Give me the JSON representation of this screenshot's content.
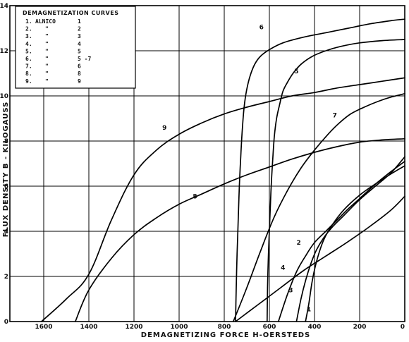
{
  "chart_data": {
    "type": "line",
    "title": "",
    "xlabel": "DEMAGNETIZING FORCE H-OERSTEDS",
    "ylabel": "FLUX DENSITY B - KILOGAUSS",
    "x_reversed": true,
    "xlim": [
      1750,
      0
    ],
    "ylim": [
      0,
      14
    ],
    "x_ticks": [
      1600,
      1400,
      1200,
      1000,
      800,
      600,
      400,
      200,
      0
    ],
    "x_tick_labels": [
      "1600",
      "1400",
      "1200",
      "1000",
      "800",
      "600",
      "400",
      "200",
      "0"
    ],
    "y_ticks": [
      0,
      2,
      4,
      6,
      8,
      10,
      12,
      14
    ],
    "y_tick_labels": [
      "0",
      "2",
      "4",
      "6",
      "8",
      "10",
      "12",
      "14"
    ],
    "grid": true,
    "legend_placement": "top-left",
    "legend": {
      "title": "DEMAGNETIZATION CURVES",
      "rows": [
        {
          "num": "1.",
          "name": "ALNICO",
          "val": "1"
        },
        {
          "num": "2.",
          "name": "\"",
          "val": "2"
        },
        {
          "num": "3.",
          "name": "\"",
          "val": "3"
        },
        {
          "num": "4.",
          "name": "\"",
          "val": "4"
        },
        {
          "num": "5.",
          "name": "\"",
          "val": "5"
        },
        {
          "num": "6.",
          "name": "\"",
          "val": "5 -7"
        },
        {
          "num": "7.",
          "name": "\"",
          "val": "6"
        },
        {
          "num": "8.",
          "name": "\"",
          "val": "8"
        },
        {
          "num": "9.",
          "name": "\"",
          "val": "9"
        }
      ]
    },
    "series": [
      {
        "name": "1",
        "x": [
          440,
          425,
          410,
          390,
          360,
          320,
          270,
          200,
          130,
          60,
          0
        ],
        "y": [
          0,
          0.8,
          1.8,
          2.7,
          3.6,
          4.3,
          4.95,
          5.6,
          6.1,
          6.55,
          6.9
        ]
      },
      {
        "name": "2",
        "x": [
          560,
          520,
          480,
          440,
          400,
          350,
          300,
          250,
          200,
          140,
          80,
          0
        ],
        "y": [
          0,
          1.2,
          2.2,
          2.9,
          3.5,
          4.0,
          4.5,
          5.0,
          5.45,
          6.0,
          6.5,
          7.1
        ]
      },
      {
        "name": "3",
        "x": [
          480,
          460,
          440,
          415,
          390,
          360,
          320,
          270,
          200,
          130,
          60,
          0
        ],
        "y": [
          0,
          1.0,
          1.8,
          2.6,
          3.2,
          3.7,
          4.2,
          4.7,
          5.4,
          6.0,
          6.6,
          7.3
        ]
      },
      {
        "name": "4",
        "x": [
          750,
          650,
          550,
          450,
          350,
          250,
          150,
          60,
          0
        ],
        "y": [
          0,
          0.75,
          1.5,
          2.25,
          2.9,
          3.55,
          4.25,
          4.95,
          5.55
        ]
      },
      {
        "name": "5",
        "x": [
          610,
          608,
          604,
          598,
          592,
          585,
          578,
          568,
          555,
          540,
          520,
          495,
          460,
          410,
          350,
          280,
          200,
          100,
          0
        ],
        "y": [
          0,
          1.5,
          3.0,
          4.5,
          6.0,
          7.2,
          8.2,
          9.0,
          9.6,
          10.2,
          10.6,
          11.0,
          11.4,
          11.75,
          12.0,
          12.2,
          12.35,
          12.45,
          12.5
        ]
      },
      {
        "name": "6",
        "x": [
          750,
          747,
          743,
          738,
          733,
          727,
          720,
          712,
          700,
          685,
          665,
          640,
          600,
          540,
          450,
          350,
          250,
          150,
          50,
          0
        ],
        "y": [
          0,
          1.5,
          3.0,
          4.5,
          6.0,
          7.3,
          8.5,
          9.5,
          10.3,
          10.9,
          11.4,
          11.75,
          12.05,
          12.35,
          12.6,
          12.8,
          13.0,
          13.2,
          13.35,
          13.4
        ]
      },
      {
        "name": "7",
        "x": [
          760,
          700,
          640,
          580,
          520,
          460,
          400,
          340,
          290,
          240,
          180,
          120,
          60,
          0
        ],
        "y": [
          0,
          1.5,
          3.1,
          4.6,
          5.8,
          6.8,
          7.6,
          8.3,
          8.8,
          9.2,
          9.5,
          9.75,
          9.95,
          10.1
        ]
      },
      {
        "name": "8",
        "x": [
          1460,
          1400,
          1300,
          1200,
          1100,
          1000,
          900,
          800,
          700,
          600,
          500,
          400,
          300,
          200,
          100,
          0
        ],
        "y": [
          0,
          1.4,
          2.8,
          3.85,
          4.6,
          5.2,
          5.65,
          6.1,
          6.5,
          6.85,
          7.2,
          7.5,
          7.75,
          7.95,
          8.05,
          8.1
        ]
      },
      {
        "name": "9",
        "x": [
          1610,
          1500,
          1400,
          1300,
          1200,
          1100,
          1000,
          900,
          800,
          700,
          600,
          500,
          400,
          300,
          200,
          100,
          0
        ],
        "y": [
          0,
          1.0,
          2.1,
          4.5,
          6.5,
          7.6,
          8.3,
          8.8,
          9.2,
          9.5,
          9.75,
          10.0,
          10.15,
          10.35,
          10.5,
          10.65,
          10.8
        ]
      }
    ],
    "curve_labels": [
      {
        "text": "1",
        "x": 425,
        "y": 0.45
      },
      {
        "text": "2",
        "x": 470,
        "y": 3.4
      },
      {
        "text": "3",
        "x": 505,
        "y": 1.3
      },
      {
        "text": "4",
        "x": 540,
        "y": 2.3
      },
      {
        "text": "5",
        "x": 480,
        "y": 11.0
      },
      {
        "text": "6",
        "x": 635,
        "y": 12.95
      },
      {
        "text": "7",
        "x": 310,
        "y": 9.05
      },
      {
        "text": "8",
        "x": 930,
        "y": 5.45
      },
      {
        "text": "9",
        "x": 1065,
        "y": 8.5
      }
    ]
  }
}
